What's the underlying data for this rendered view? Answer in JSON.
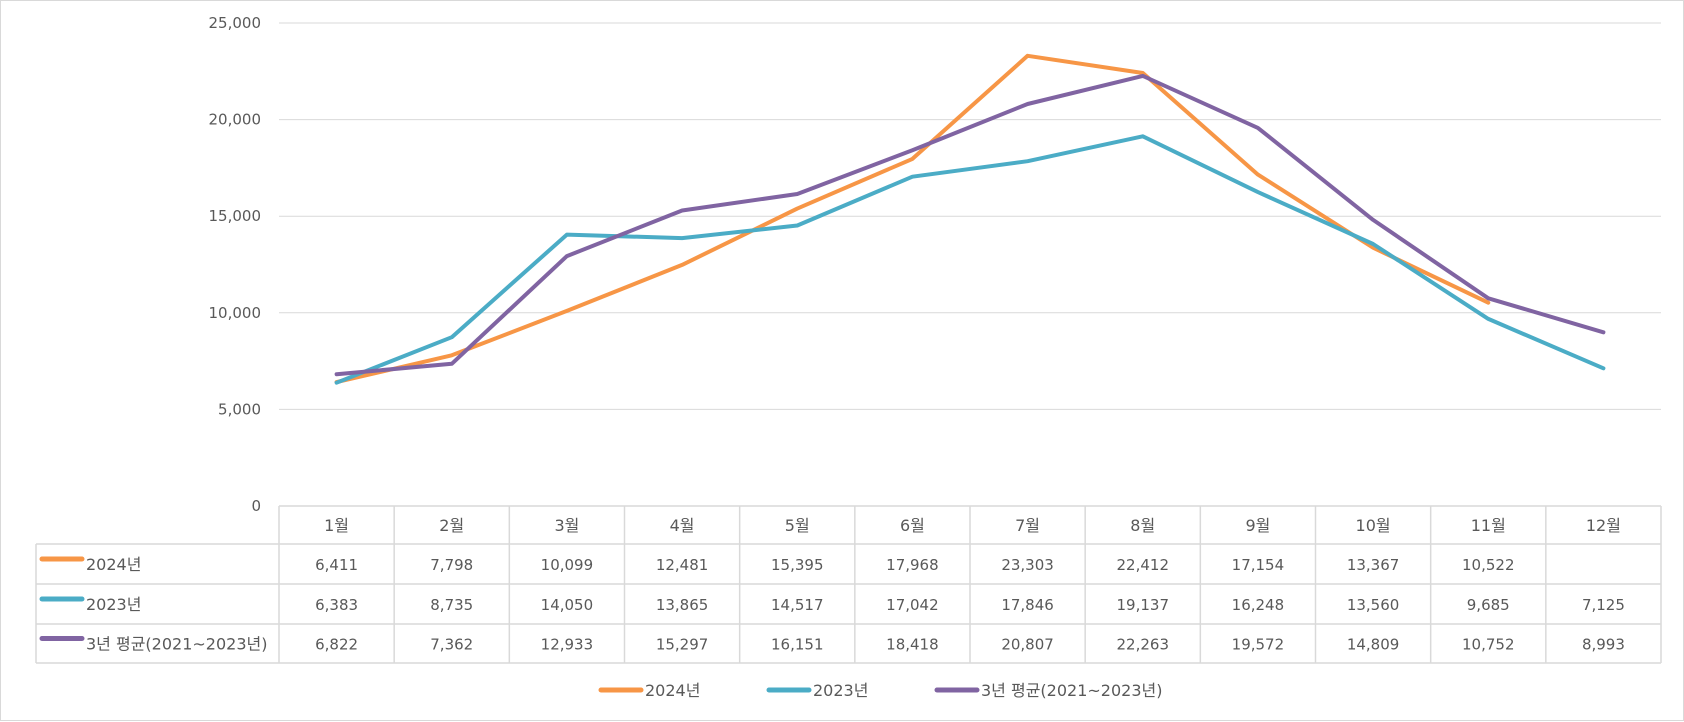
{
  "chart_data": {
    "type": "line",
    "categories": [
      "1월",
      "2월",
      "3월",
      "4월",
      "5월",
      "6월",
      "7월",
      "8월",
      "9월",
      "10월",
      "11월",
      "12월"
    ],
    "ylim": [
      0,
      25000
    ],
    "yticks": [
      0,
      5000,
      10000,
      15000,
      20000,
      25000
    ],
    "ytick_labels": [
      "0",
      "5,000",
      "10,000",
      "15,000",
      "20,000",
      "25,000"
    ],
    "grid": true,
    "legend_position": "bottom",
    "data_table": true,
    "series": [
      {
        "name": "2024년",
        "color": "#f79646",
        "values": [
          6411,
          7798,
          10099,
          12481,
          15395,
          17968,
          23303,
          22412,
          17154,
          13367,
          10522,
          null
        ],
        "labels": [
          "6,411",
          "7,798",
          "10,099",
          "12,481",
          "15,395",
          "17,968",
          "23,303",
          "22,412",
          "17,154",
          "13,367",
          "10,522",
          ""
        ]
      },
      {
        "name": "2023년",
        "color": "#4bacc6",
        "values": [
          6383,
          8735,
          14050,
          13865,
          14517,
          17042,
          17846,
          19137,
          16248,
          13560,
          9685,
          7125
        ],
        "labels": [
          "6,383",
          "8,735",
          "14,050",
          "13,865",
          "14,517",
          "17,042",
          "17,846",
          "19,137",
          "16,248",
          "13,560",
          "9,685",
          "7,125"
        ]
      },
      {
        "name": "3년 평균(2021~2023년)",
        "color": "#8064a2",
        "values": [
          6822,
          7362,
          12933,
          15297,
          16151,
          18418,
          20807,
          22263,
          19572,
          14809,
          10752,
          8993
        ],
        "labels": [
          "6,822",
          "7,362",
          "12,933",
          "15,297",
          "16,151",
          "18,418",
          "20,807",
          "22,263",
          "19,572",
          "14,809",
          "10,752",
          "8,993"
        ]
      }
    ]
  }
}
